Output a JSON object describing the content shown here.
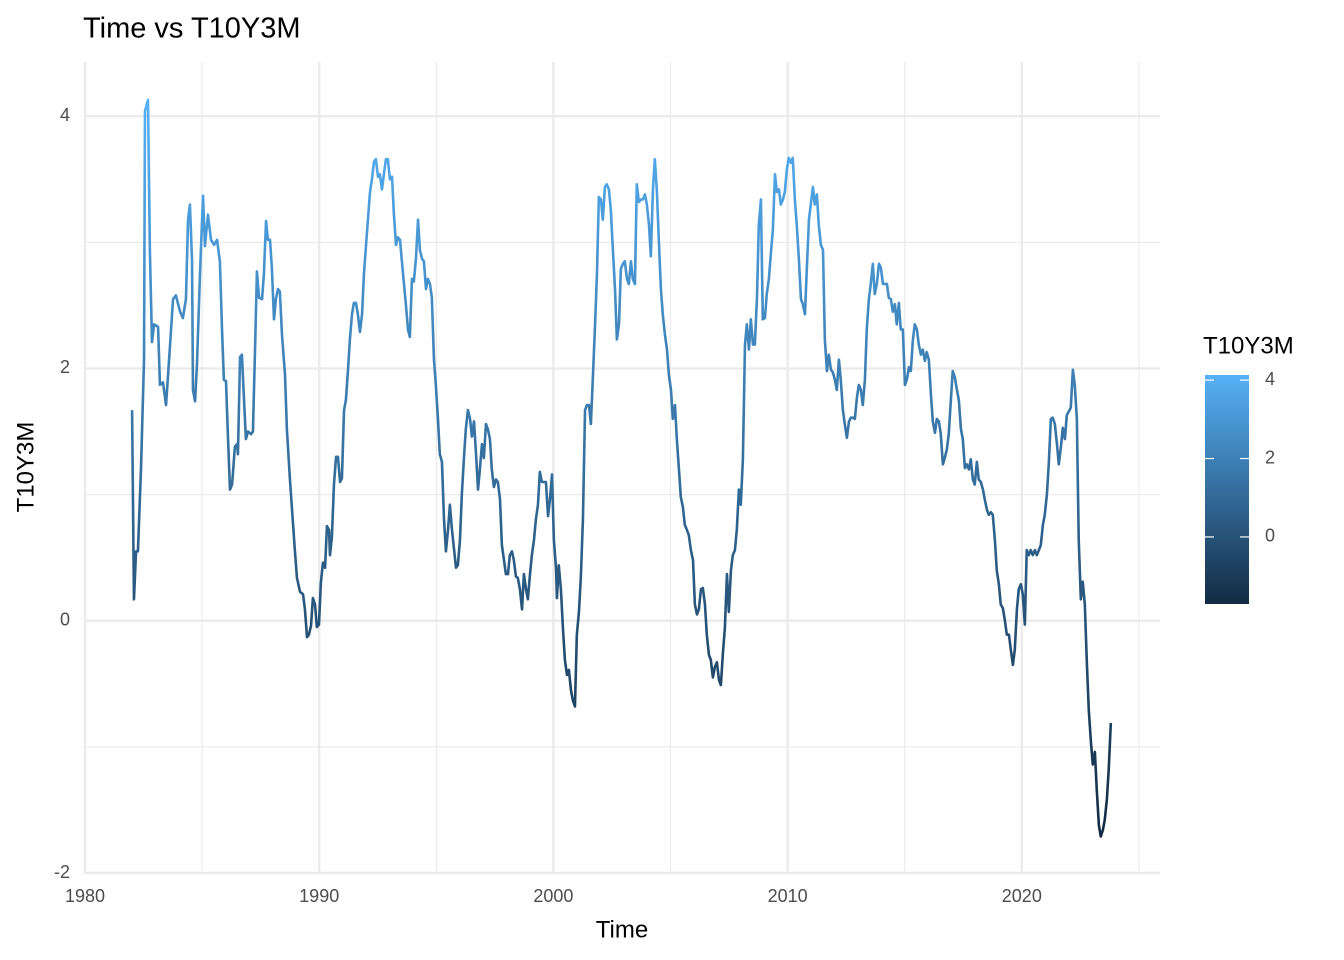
{
  "chart_data": {
    "type": "line",
    "title": "Time vs T10Y3M",
    "xlabel": "Time",
    "ylabel": "T10Y3M",
    "xlim": [
      1980,
      2025.9
    ],
    "xticks": [
      1980,
      1990,
      2000,
      2010,
      2020
    ],
    "xminorticks": [
      1985,
      1995,
      2005,
      2015,
      2025
    ],
    "ylim": [
      -2,
      4.43
    ],
    "yticks": [
      -2,
      0,
      2,
      4
    ],
    "yminorticks": [
      -1,
      1,
      3
    ],
    "grid": true,
    "colorscale": {
      "low": "#132B43",
      "high": "#56B1F7",
      "ticks": [
        0,
        2,
        4
      ]
    },
    "x": [
      1982.01,
      1982.09,
      1982.18,
      1982.26,
      1982.39,
      1982.52,
      1982.56,
      1982.69,
      1982.77,
      1982.86,
      1982.95,
      1983.12,
      1983.2,
      1983.33,
      1983.46,
      1983.59,
      1983.76,
      1983.88,
      1984.06,
      1984.18,
      1984.31,
      1984.4,
      1984.48,
      1984.57,
      1984.61,
      1984.7,
      1984.78,
      1984.91,
      1985.04,
      1985.12,
      1985.25,
      1985.38,
      1985.51,
      1985.64,
      1985.68,
      1985.76,
      1985.85,
      1985.93,
      1986.02,
      1986.1,
      1986.19,
      1986.28,
      1986.4,
      1986.49,
      1986.53,
      1986.62,
      1986.7,
      1986.79,
      1986.87,
      1986.96,
      1987.09,
      1987.17,
      1987.26,
      1987.34,
      1987.43,
      1987.56,
      1987.64,
      1987.73,
      1987.81,
      1987.9,
      1987.98,
      1988.07,
      1988.15,
      1988.24,
      1988.32,
      1988.41,
      1988.54,
      1988.62,
      1988.75,
      1988.84,
      1988.96,
      1989.05,
      1989.18,
      1989.31,
      1989.39,
      1989.48,
      1989.56,
      1989.65,
      1989.73,
      1989.82,
      1989.9,
      1989.99,
      1990.07,
      1990.16,
      1990.25,
      1990.33,
      1990.42,
      1990.46,
      1990.54,
      1990.63,
      1990.72,
      1990.8,
      1990.89,
      1990.97,
      1991.06,
      1991.14,
      1991.23,
      1991.31,
      1991.4,
      1991.48,
      1991.57,
      1991.65,
      1991.74,
      1991.83,
      1991.91,
      1992.0,
      1992.08,
      1992.17,
      1992.25,
      1992.34,
      1992.42,
      1992.51,
      1992.59,
      1992.68,
      1992.76,
      1992.85,
      1992.93,
      1993.02,
      1993.11,
      1993.19,
      1993.28,
      1993.36,
      1993.45,
      1993.53,
      1993.62,
      1993.7,
      1993.79,
      1993.87,
      1993.96,
      1994.04,
      1994.13,
      1994.22,
      1994.3,
      1994.39,
      1994.47,
      1994.56,
      1994.64,
      1994.73,
      1994.81,
      1994.9,
      1994.98,
      1995.07,
      1995.15,
      1995.24,
      1995.33,
      1995.41,
      1995.5,
      1995.58,
      1995.67,
      1995.75,
      1995.84,
      1995.92,
      1996.01,
      1996.09,
      1996.18,
      1996.26,
      1996.35,
      1996.44,
      1996.52,
      1996.61,
      1996.69,
      1996.78,
      1996.86,
      1996.95,
      1997.03,
      1997.12,
      1997.2,
      1997.29,
      1997.37,
      1997.46,
      1997.55,
      1997.63,
      1997.72,
      1997.8,
      1997.89,
      1997.97,
      1998.06,
      1998.14,
      1998.23,
      1998.31,
      1998.4,
      1998.48,
      1998.57,
      1998.66,
      1998.74,
      1998.83,
      1998.91,
      1999.0,
      1999.08,
      1999.17,
      1999.25,
      1999.34,
      1999.42,
      1999.51,
      1999.59,
      1999.68,
      1999.77,
      1999.85,
      1999.94,
      2000.02,
      2000.11,
      2000.15,
      2000.23,
      2000.32,
      2000.41,
      2000.49,
      2000.58,
      2000.66,
      2000.75,
      2000.83,
      2000.92,
      2001.0,
      2001.09,
      2001.17,
      2001.26,
      2001.35,
      2001.43,
      2001.52,
      2001.6,
      2001.69,
      2001.77,
      2001.86,
      2001.94,
      2002.03,
      2002.11,
      2002.2,
      2002.28,
      2002.37,
      2002.45,
      2002.54,
      2002.63,
      2002.71,
      2002.8,
      2002.88,
      2002.97,
      2003.05,
      2003.14,
      2003.22,
      2003.31,
      2003.39,
      2003.48,
      2003.56,
      2003.65,
      2003.74,
      2003.82,
      2003.91,
      2003.99,
      2004.08,
      2004.16,
      2004.25,
      2004.33,
      2004.42,
      2004.5,
      2004.59,
      2004.67,
      2004.76,
      2004.85,
      2004.93,
      2005.02,
      2005.1,
      2005.19,
      2005.27,
      2005.36,
      2005.44,
      2005.53,
      2005.61,
      2005.7,
      2005.78,
      2005.87,
      2005.96,
      2006.04,
      2006.13,
      2006.21,
      2006.3,
      2006.38,
      2006.47,
      2006.55,
      2006.64,
      2006.72,
      2006.81,
      2006.89,
      2006.98,
      2007.07,
      2007.15,
      2007.24,
      2007.32,
      2007.41,
      2007.49,
      2007.58,
      2007.66,
      2007.75,
      2007.83,
      2007.92,
      2008.0,
      2008.09,
      2008.18,
      2008.26,
      2008.35,
      2008.43,
      2008.52,
      2008.6,
      2008.69,
      2008.77,
      2008.86,
      2008.94,
      2009.03,
      2009.11,
      2009.2,
      2009.28,
      2009.37,
      2009.46,
      2009.54,
      2009.63,
      2009.71,
      2009.8,
      2009.88,
      2009.97,
      2010.05,
      2010.14,
      2010.22,
      2010.31,
      2010.39,
      2010.48,
      2010.57,
      2010.65,
      2010.74,
      2010.82,
      2010.91,
      2010.99,
      2011.08,
      2011.16,
      2011.25,
      2011.33,
      2011.42,
      2011.51,
      2011.59,
      2011.68,
      2011.76,
      2011.85,
      2011.93,
      2012.02,
      2012.1,
      2012.19,
      2012.27,
      2012.36,
      2012.44,
      2012.53,
      2012.62,
      2012.7,
      2012.79,
      2012.87,
      2012.96,
      2013.04,
      2013.13,
      2013.21,
      2013.3,
      2013.38,
      2013.47,
      2013.55,
      2013.64,
      2013.72,
      2013.81,
      2013.9,
      2013.98,
      2014.07,
      2014.15,
      2014.24,
      2014.32,
      2014.41,
      2014.49,
      2014.58,
      2014.66,
      2014.75,
      2014.83,
      2014.92,
      2015.01,
      2015.09,
      2015.18,
      2015.26,
      2015.35,
      2015.43,
      2015.52,
      2015.6,
      2015.69,
      2015.77,
      2015.86,
      2015.94,
      2016.03,
      2016.12,
      2016.2,
      2016.29,
      2016.37,
      2016.46,
      2016.54,
      2016.63,
      2016.71,
      2016.8,
      2016.88,
      2016.97,
      2017.05,
      2017.14,
      2017.23,
      2017.31,
      2017.4,
      2017.48,
      2017.57,
      2017.65,
      2017.74,
      2017.82,
      2017.91,
      2017.99,
      2018.08,
      2018.16,
      2018.25,
      2018.34,
      2018.42,
      2018.51,
      2018.59,
      2018.68,
      2018.76,
      2018.85,
      2018.93,
      2019.02,
      2019.1,
      2019.19,
      2019.27,
      2019.36,
      2019.45,
      2019.53,
      2019.62,
      2019.7,
      2019.79,
      2019.87,
      2019.96,
      2020.04,
      2020.13,
      2020.21,
      2020.3,
      2020.38,
      2020.47,
      2020.56,
      2020.64,
      2020.73,
      2020.81,
      2020.9,
      2020.98,
      2021.07,
      2021.15,
      2021.24,
      2021.32,
      2021.41,
      2021.5,
      2021.58,
      2021.67,
      2021.75,
      2021.84,
      2021.92,
      2022.01,
      2022.09,
      2022.18,
      2022.26,
      2022.35,
      2022.43,
      2022.52,
      2022.6,
      2022.69,
      2022.78,
      2022.86,
      2022.95,
      2023.03,
      2023.12,
      2023.2,
      2023.29,
      2023.37,
      2023.46,
      2023.54,
      2023.63,
      2023.71,
      2023.8
    ],
    "series": [
      {
        "name": "T10Y3M",
        "values": [
          1.67,
          0.17,
          0.55,
          0.55,
          1.2,
          2.07,
          4.04,
          4.13,
          2.94,
          2.21,
          2.35,
          2.33,
          1.87,
          1.89,
          1.71,
          2.07,
          2.55,
          2.58,
          2.45,
          2.4,
          2.55,
          3.18,
          3.3,
          2.86,
          1.83,
          1.74,
          2.03,
          2.75,
          3.37,
          2.97,
          3.22,
          3.02,
          2.98,
          3.02,
          2.96,
          2.85,
          2.31,
          1.91,
          1.9,
          1.48,
          1.04,
          1.08,
          1.38,
          1.4,
          1.32,
          2.09,
          2.11,
          1.75,
          1.44,
          1.5,
          1.48,
          1.5,
          2.15,
          2.77,
          2.56,
          2.55,
          2.75,
          3.17,
          3.02,
          3.02,
          2.79,
          2.39,
          2.55,
          2.63,
          2.61,
          2.27,
          1.95,
          1.52,
          1.12,
          0.88,
          0.56,
          0.34,
          0.23,
          0.21,
          0.09,
          -0.13,
          -0.11,
          -0.04,
          0.18,
          0.13,
          -0.05,
          -0.03,
          0.3,
          0.46,
          0.42,
          0.75,
          0.72,
          0.52,
          0.66,
          1.08,
          1.3,
          1.3,
          1.1,
          1.13,
          1.67,
          1.75,
          1.99,
          2.23,
          2.43,
          2.52,
          2.52,
          2.43,
          2.29,
          2.43,
          2.75,
          2.98,
          3.18,
          3.4,
          3.5,
          3.64,
          3.66,
          3.52,
          3.54,
          3.42,
          3.54,
          3.66,
          3.66,
          3.5,
          3.52,
          3.22,
          2.98,
          3.04,
          3.02,
          2.85,
          2.67,
          2.51,
          2.31,
          2.25,
          2.71,
          2.69,
          2.87,
          3.18,
          2.94,
          2.87,
          2.85,
          2.63,
          2.71,
          2.67,
          2.56,
          2.07,
          1.87,
          1.6,
          1.32,
          1.26,
          0.8,
          0.55,
          0.72,
          0.92,
          0.72,
          0.58,
          0.42,
          0.44,
          0.64,
          1.0,
          1.29,
          1.52,
          1.67,
          1.6,
          1.46,
          1.58,
          1.34,
          1.04,
          1.2,
          1.4,
          1.29,
          1.56,
          1.52,
          1.44,
          1.2,
          1.06,
          1.12,
          1.1,
          0.96,
          0.6,
          0.48,
          0.37,
          0.37,
          0.52,
          0.55,
          0.48,
          0.35,
          0.34,
          0.25,
          0.09,
          0.37,
          0.25,
          0.17,
          0.37,
          0.52,
          0.64,
          0.8,
          0.92,
          1.18,
          1.1,
          1.1,
          1.1,
          0.83,
          0.96,
          1.16,
          0.64,
          0.42,
          0.18,
          0.44,
          0.25,
          -0.07,
          -0.31,
          -0.43,
          -0.39,
          -0.55,
          -0.63,
          -0.68,
          -0.11,
          0.07,
          0.34,
          0.8,
          1.67,
          1.71,
          1.71,
          1.56,
          1.95,
          2.31,
          2.75,
          3.36,
          3.34,
          3.18,
          3.44,
          3.46,
          3.42,
          3.26,
          2.94,
          2.63,
          2.23,
          2.35,
          2.79,
          2.83,
          2.85,
          2.71,
          2.67,
          2.85,
          2.71,
          2.67,
          3.46,
          3.32,
          3.34,
          3.34,
          3.38,
          3.3,
          3.14,
          2.89,
          3.42,
          3.66,
          3.4,
          3.02,
          2.63,
          2.43,
          2.27,
          2.15,
          1.95,
          1.83,
          1.6,
          1.71,
          1.44,
          1.2,
          0.98,
          0.9,
          0.76,
          0.72,
          0.68,
          0.56,
          0.48,
          0.13,
          0.05,
          0.09,
          0.25,
          0.26,
          0.13,
          -0.11,
          -0.27,
          -0.31,
          -0.45,
          -0.37,
          -0.33,
          -0.47,
          -0.51,
          -0.25,
          -0.06,
          0.37,
          0.07,
          0.4,
          0.52,
          0.56,
          0.72,
          1.04,
          0.92,
          1.28,
          2.19,
          2.35,
          2.15,
          2.39,
          2.19,
          2.19,
          2.55,
          3.14,
          3.34,
          2.39,
          2.4,
          2.59,
          2.71,
          2.9,
          3.1,
          3.54,
          3.4,
          3.42,
          3.3,
          3.34,
          3.4,
          3.58,
          3.67,
          3.63,
          3.67,
          3.34,
          3.14,
          2.87,
          2.55,
          2.51,
          2.43,
          2.79,
          3.18,
          3.3,
          3.44,
          3.3,
          3.38,
          3.14,
          2.98,
          2.94,
          2.23,
          1.98,
          2.11,
          1.99,
          1.97,
          1.91,
          1.83,
          2.07,
          1.91,
          1.67,
          1.56,
          1.45,
          1.58,
          1.61,
          1.61,
          1.6,
          1.77,
          1.87,
          1.83,
          1.71,
          1.91,
          2.31,
          2.55,
          2.67,
          2.83,
          2.59,
          2.67,
          2.83,
          2.8,
          2.67,
          2.67,
          2.67,
          2.56,
          2.55,
          2.45,
          2.51,
          2.35,
          2.52,
          2.31,
          2.31,
          1.87,
          1.91,
          2.01,
          1.98,
          2.23,
          2.35,
          2.31,
          2.19,
          2.11,
          2.15,
          2.06,
          2.13,
          2.07,
          1.79,
          1.58,
          1.49,
          1.6,
          1.58,
          1.48,
          1.24,
          1.29,
          1.36,
          1.48,
          1.75,
          1.98,
          1.93,
          1.83,
          1.75,
          1.52,
          1.44,
          1.21,
          1.24,
          1.2,
          1.28,
          1.12,
          1.08,
          1.26,
          1.12,
          1.1,
          1.04,
          0.96,
          0.88,
          0.84,
          0.86,
          0.84,
          0.64,
          0.4,
          0.29,
          0.13,
          0.1,
          0.01,
          -0.11,
          -0.11,
          -0.23,
          -0.35,
          -0.23,
          0.09,
          0.25,
          0.29,
          0.21,
          -0.03,
          0.56,
          0.52,
          0.56,
          0.52,
          0.56,
          0.52,
          0.56,
          0.6,
          0.76,
          0.84,
          1.0,
          1.24,
          1.6,
          1.61,
          1.56,
          1.4,
          1.24,
          1.38,
          1.53,
          1.44,
          1.63,
          1.66,
          1.69,
          1.99,
          1.87,
          1.6,
          0.64,
          0.17,
          0.31,
          0.13,
          -0.35,
          -0.71,
          -0.96,
          -1.14,
          -1.04,
          -1.34,
          -1.62,
          -1.71,
          -1.66,
          -1.58,
          -1.42,
          -1.18,
          -0.81
        ]
      }
    ]
  }
}
